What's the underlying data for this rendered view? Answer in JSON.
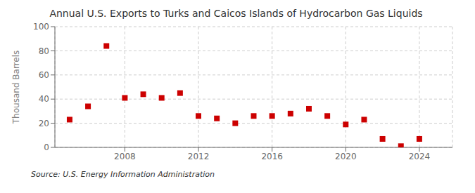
{
  "chart_data": {
    "type": "scatter",
    "title": "Annual U.S. Exports to Turks and Caicos Islands of Hydrocarbon Gas Liquids",
    "y_label": "Thousand Barrels",
    "annotations": [
      "Source: U.S. Energy Information Administration"
    ],
    "x": [
      2005,
      2006,
      2007,
      2008,
      2009,
      2010,
      2011,
      2012,
      2013,
      2014,
      2015,
      2016,
      2017,
      2018,
      2019,
      2020,
      2021,
      2022,
      2023,
      2024
    ],
    "values": [
      23,
      34,
      84,
      41,
      44,
      41,
      45,
      26,
      24,
      20,
      26,
      26,
      28,
      32,
      26,
      19,
      23,
      7,
      1,
      7
    ],
    "color": "#cc0000",
    "marker": "square",
    "xlim": [
      2004.2,
      2025.8
    ],
    "xticks": [
      2008,
      2012,
      2016,
      2020,
      2024
    ],
    "ylim": [
      0,
      100
    ],
    "yticks": [
      0,
      20,
      40,
      60,
      80,
      100
    ],
    "grid": true
  }
}
